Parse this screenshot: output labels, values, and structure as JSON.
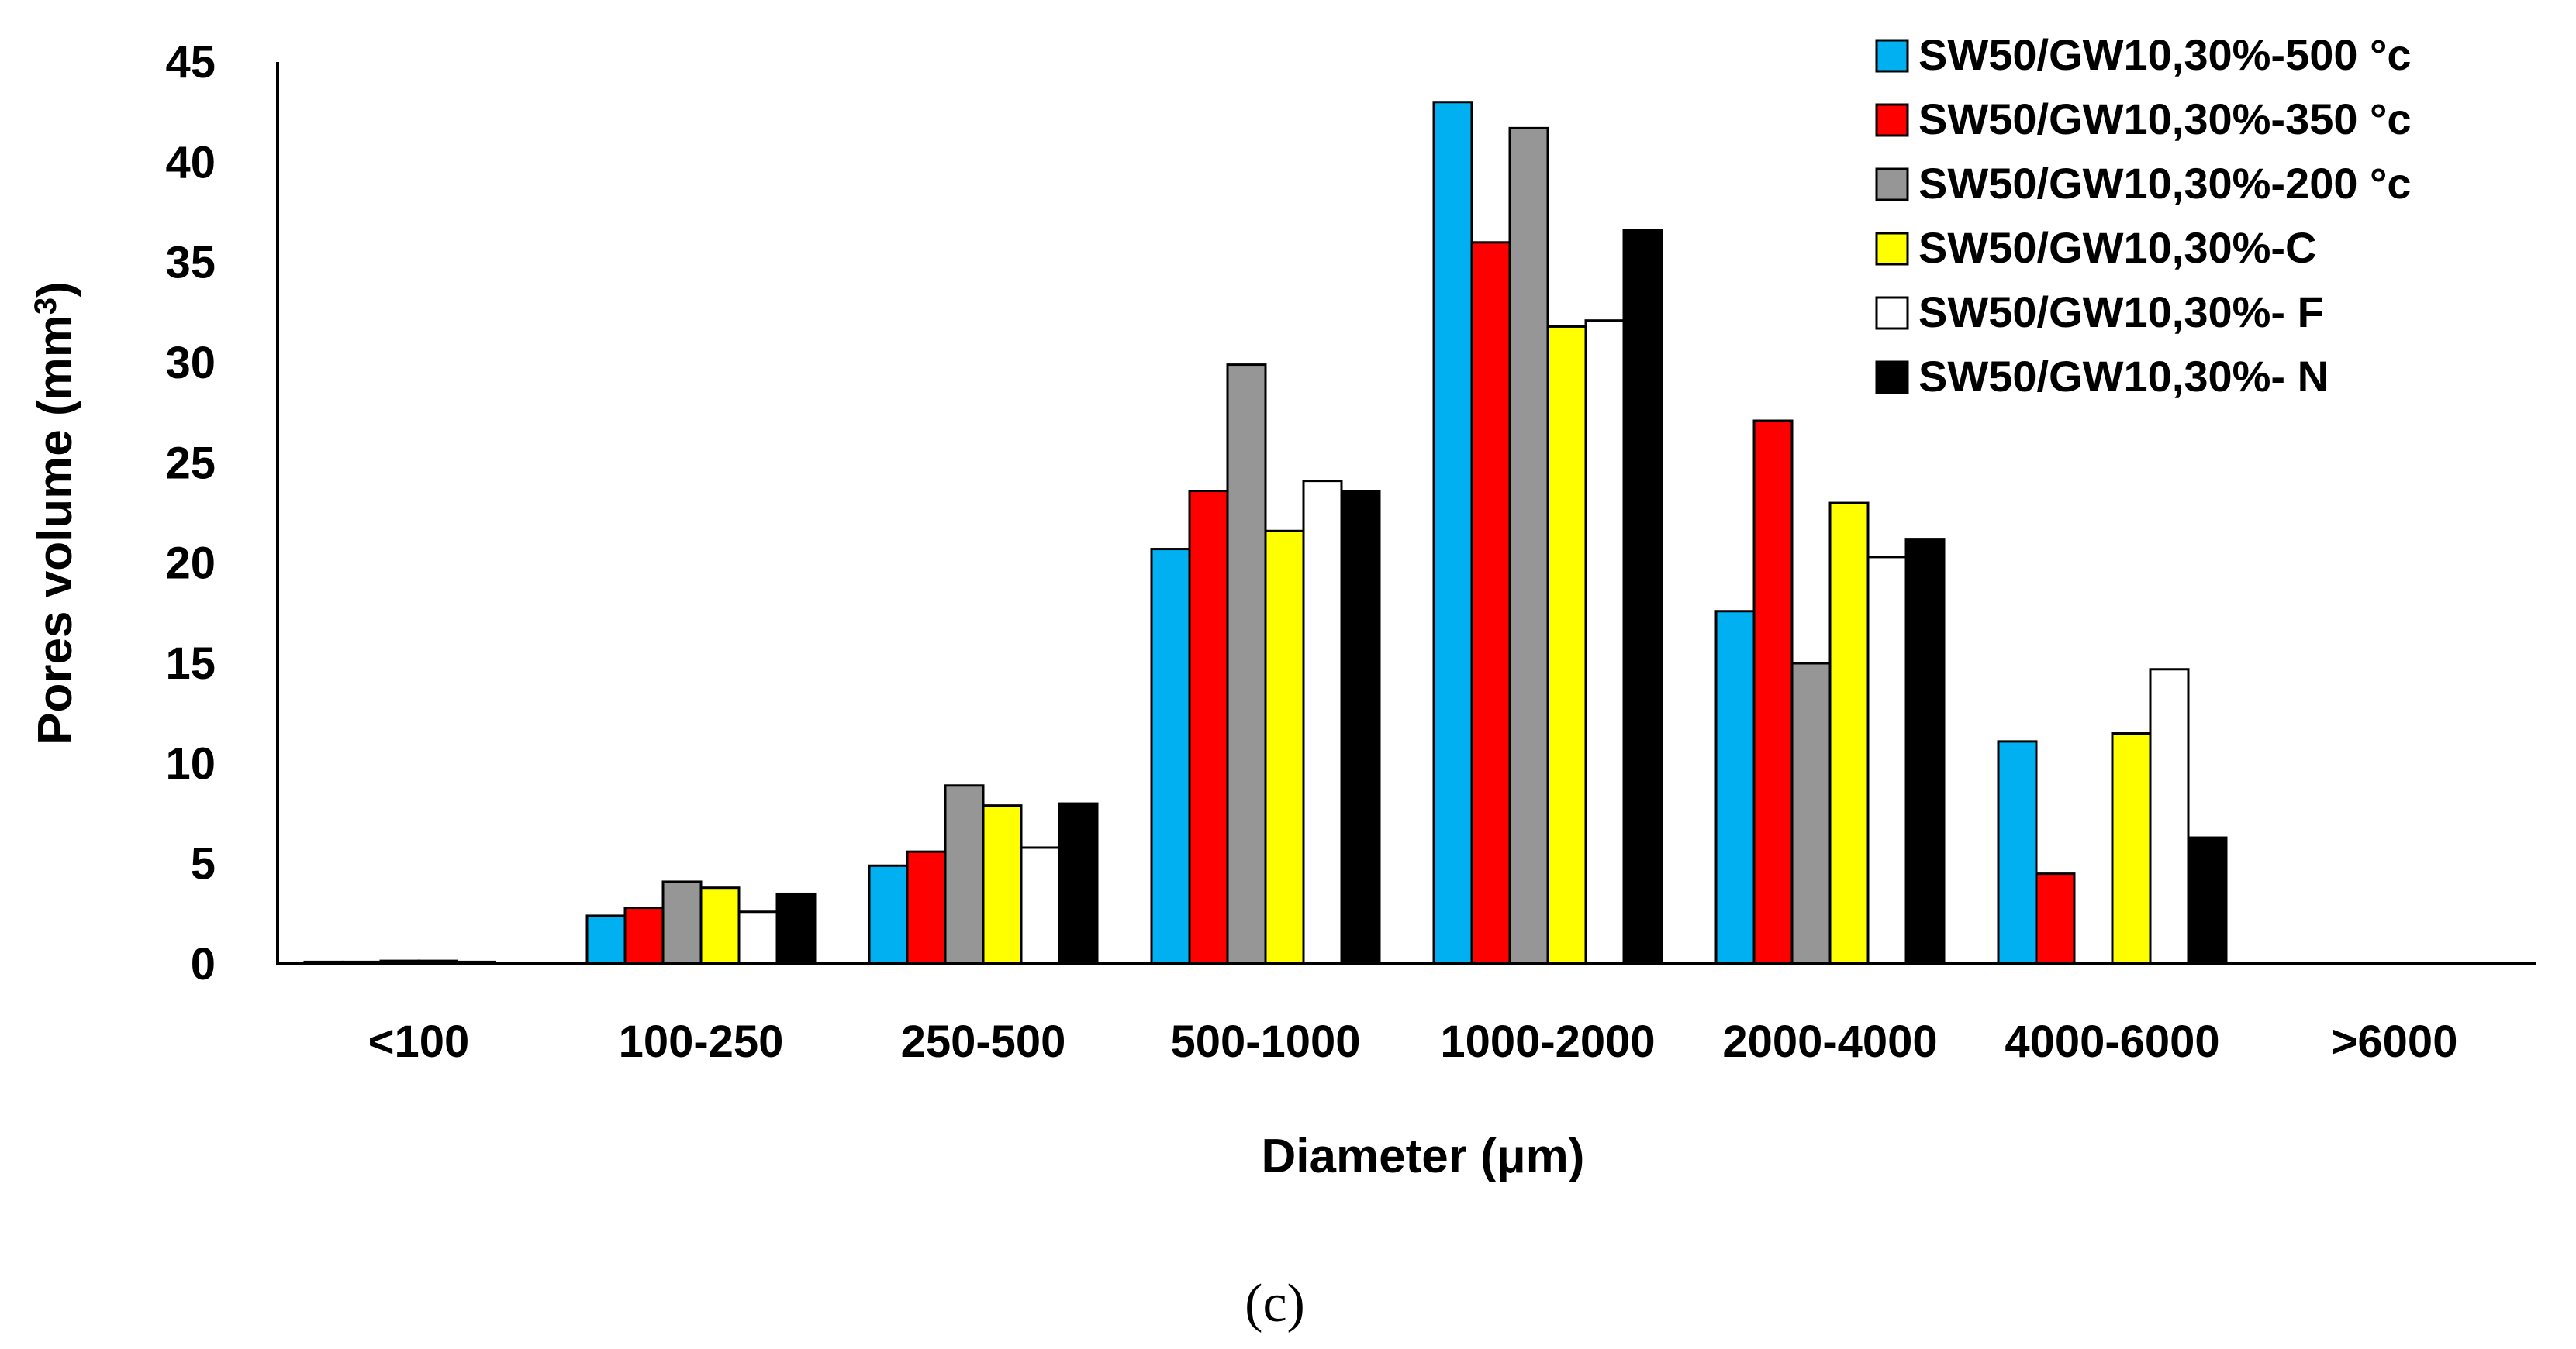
{
  "chart_data": {
    "type": "bar",
    "title": "",
    "xlabel": "Diameter (μm)",
    "ylabel_main": "Pores volume (mm",
    "ylabel_sup": "3",
    "ylabel_close": ")",
    "ylim": [
      0,
      45
    ],
    "yticks": [
      0,
      5,
      10,
      15,
      20,
      25,
      30,
      35,
      40,
      45
    ],
    "grid": false,
    "legend_position": "top-right",
    "caption": "(c)",
    "categories": [
      "<100",
      "100-250",
      "250-500",
      "500-1000",
      "1000-2000",
      "2000-4000",
      "4000-6000",
      ">6000"
    ],
    "series": [
      {
        "name": "SW50/GW10,30%-500 °c",
        "color": "#00B0F0",
        "values": [
          0.1,
          2.4,
          4.9,
          20.7,
          43.0,
          17.6,
          11.1,
          0
        ]
      },
      {
        "name": "SW50/GW10,30%-350 °c",
        "color": "#FF0000",
        "values": [
          0.1,
          2.8,
          5.6,
          23.6,
          36.0,
          27.1,
          4.5,
          0
        ]
      },
      {
        "name": "SW50/GW10,30%-200 °c",
        "color": "#969696",
        "values": [
          0.15,
          4.1,
          8.9,
          29.9,
          41.7,
          15.0,
          0,
          0
        ]
      },
      {
        "name": "SW50/GW10,30%-C",
        "color": "#FFFF00",
        "values": [
          0.15,
          3.8,
          7.9,
          21.6,
          31.8,
          23.0,
          11.5,
          0
        ]
      },
      {
        "name": "SW50/GW10,30%- F",
        "color": "#FFFFFF",
        "values": [
          0.1,
          2.6,
          5.8,
          24.1,
          32.1,
          20.3,
          14.7,
          0
        ]
      },
      {
        "name": "SW50/GW10,30%- N",
        "color": "#000000",
        "values": [
          0.05,
          3.5,
          8.0,
          23.6,
          36.6,
          21.2,
          6.3,
          0
        ]
      }
    ]
  }
}
